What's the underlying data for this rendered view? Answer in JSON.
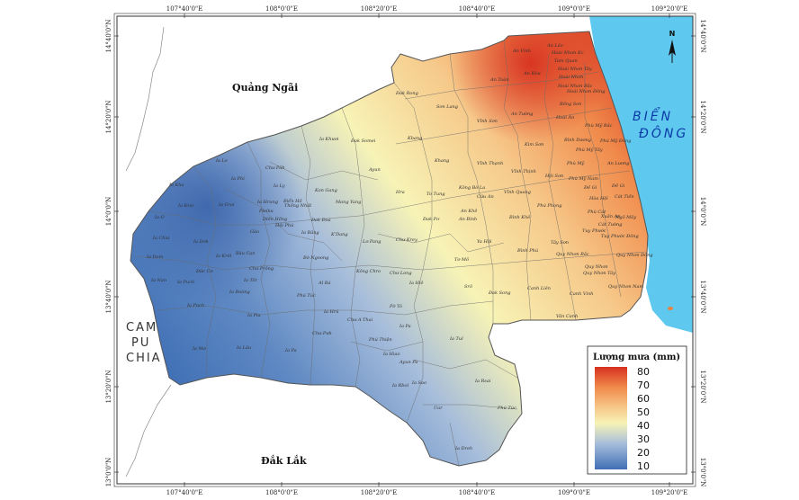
{
  "lon_ticks_top": [
    "107°40'0\"E",
    "108°0'0\"E",
    "108°20'0\"E",
    "108°40'0\"E",
    "109°0'0\"E",
    "109°20'0\"E"
  ],
  "lon_ticks_bottom": [
    "107°40'0\"E",
    "108°0'0\"E",
    "108°20'0\"E",
    "108°40'0\"E",
    "109°0'0\"E",
    "109°20'0\"E"
  ],
  "lat_ticks": [
    "14°40'0\"N",
    "14°20'0\"N",
    "14°0'0\"N",
    "13°40'0\"N",
    "13°20'0\"N",
    "13°0'0\"N"
  ],
  "regions": {
    "quang_ngai": "Quảng Ngãi",
    "dak_lak": "Đắk Lắk",
    "campuchia": [
      "CAM",
      "PU",
      "CHIA"
    ],
    "bien_dong": [
      "BIỂN",
      "ĐÔNG"
    ]
  },
  "north_arrow": "N",
  "legend": {
    "title": "Lượng mưa (mm)",
    "ticks": [
      "80",
      "70",
      "60",
      "50",
      "40",
      "30",
      "20",
      "10"
    ],
    "colors": {
      "high": "#d7301f",
      "mid_high": "#f4a460",
      "mid": "#f7f3b6",
      "mid_low": "#a6bddb",
      "low": "#3f6fb5"
    }
  },
  "sea_color": "#5fc8ee",
  "places": [
    "An Lão",
    "Hoài Nhơn Kc",
    "Tam Quan",
    "An Vinh",
    "Hoài Nhơn Tây",
    "Hoài Nhơn",
    "An Hòa",
    "An Toàn",
    "Hoài Nhơn Bắc",
    "Hoài Nhơn Đông",
    "Bồng Sơn",
    "Hoài Ân",
    "Đak Rong",
    "Sơn Lang",
    "An Tường",
    "Vĩnh Sơn",
    "Phù Mỹ Bắc",
    "Bình Dương",
    "Phù Mỹ Đông",
    "Phù Mỹ Tây",
    "Kim Sơn",
    "Phù Mỹ",
    "An Lương",
    "Ia Khươi",
    "Đak Somei",
    "Kbang",
    "Khang",
    "Vĩnh Thạnh",
    "Vĩnh Thịnh",
    "Hội Sơn",
    "Phù Mỹ Nam",
    "Đề Gi",
    "Ia Le",
    "Ia Phí",
    "Chư Păh",
    "Ia Ly",
    "Ia Hrung",
    "Ia Grai",
    "Ia Krai",
    "Ia O",
    "Ia Chia",
    "Ia Dơk",
    "Ia Dom",
    "Ia Nan",
    "Ia Puch",
    "Đức Cơ",
    "Ia Krêl",
    "Chư Prông",
    "Ia Tôr",
    "Ia Boòng",
    "Ia Pia",
    "Ia Lâu",
    "Ia Mơ",
    "Ia Púch",
    "Ia Pa",
    "Bàu Cạn",
    "Gào",
    "Biển Hồ",
    "Pleiku",
    "Diên Hồng",
    "Hội Phú",
    "Thống Nhất",
    "Đak Đoa",
    "Ia Băng",
    "K'Dang",
    "Kon Gang",
    "Mang Yang",
    "Ayun",
    "Hra",
    "To Tung",
    "Kông Bờ La",
    "Cửu An",
    "Lơ Pang",
    "Chư Krey",
    "Đak Pơ",
    "An Khê",
    "An Bình",
    "Tơ Mô",
    "Ya Hội",
    "Vĩnh Quang",
    "Bình Khê",
    "Tây Sơn",
    "Phú Phong",
    "Bình Phú",
    "Cát Tiến",
    "Đề Gi",
    "Hòa Hội",
    "Phù Cát",
    "Xuân An",
    "Ngô Mây",
    "Cát Tường",
    "Tuy Phước",
    "Tuy Phước Đông",
    "Quy Nhơn Bắc",
    "Quy Nhơn",
    "Quy Nhơn Đông",
    "Quy Nhơn Tây",
    "Quy Nhơn Nam",
    "Canh Liên",
    "Canh Vinh",
    "Vân Canh",
    "Đak Song",
    "Srô",
    "Kông Chro",
    "Chư Long",
    "Ia Hlê",
    "Bờ Ngoong",
    "Al Bá",
    "Ia Hrú",
    "Phú Túc",
    "Chư A Thai",
    "Chư Pưh",
    "Phú Thiện",
    "Pờ Tó",
    "Ia Pa",
    "Ia Sao",
    "Ia Hiao",
    "Ayun Pa",
    "Ia Rbol",
    "Ia Tul",
    "Ia Rsai",
    "Uar",
    "Phú Túc",
    "Ia Dreh",
    "Ia Kha"
  ]
}
